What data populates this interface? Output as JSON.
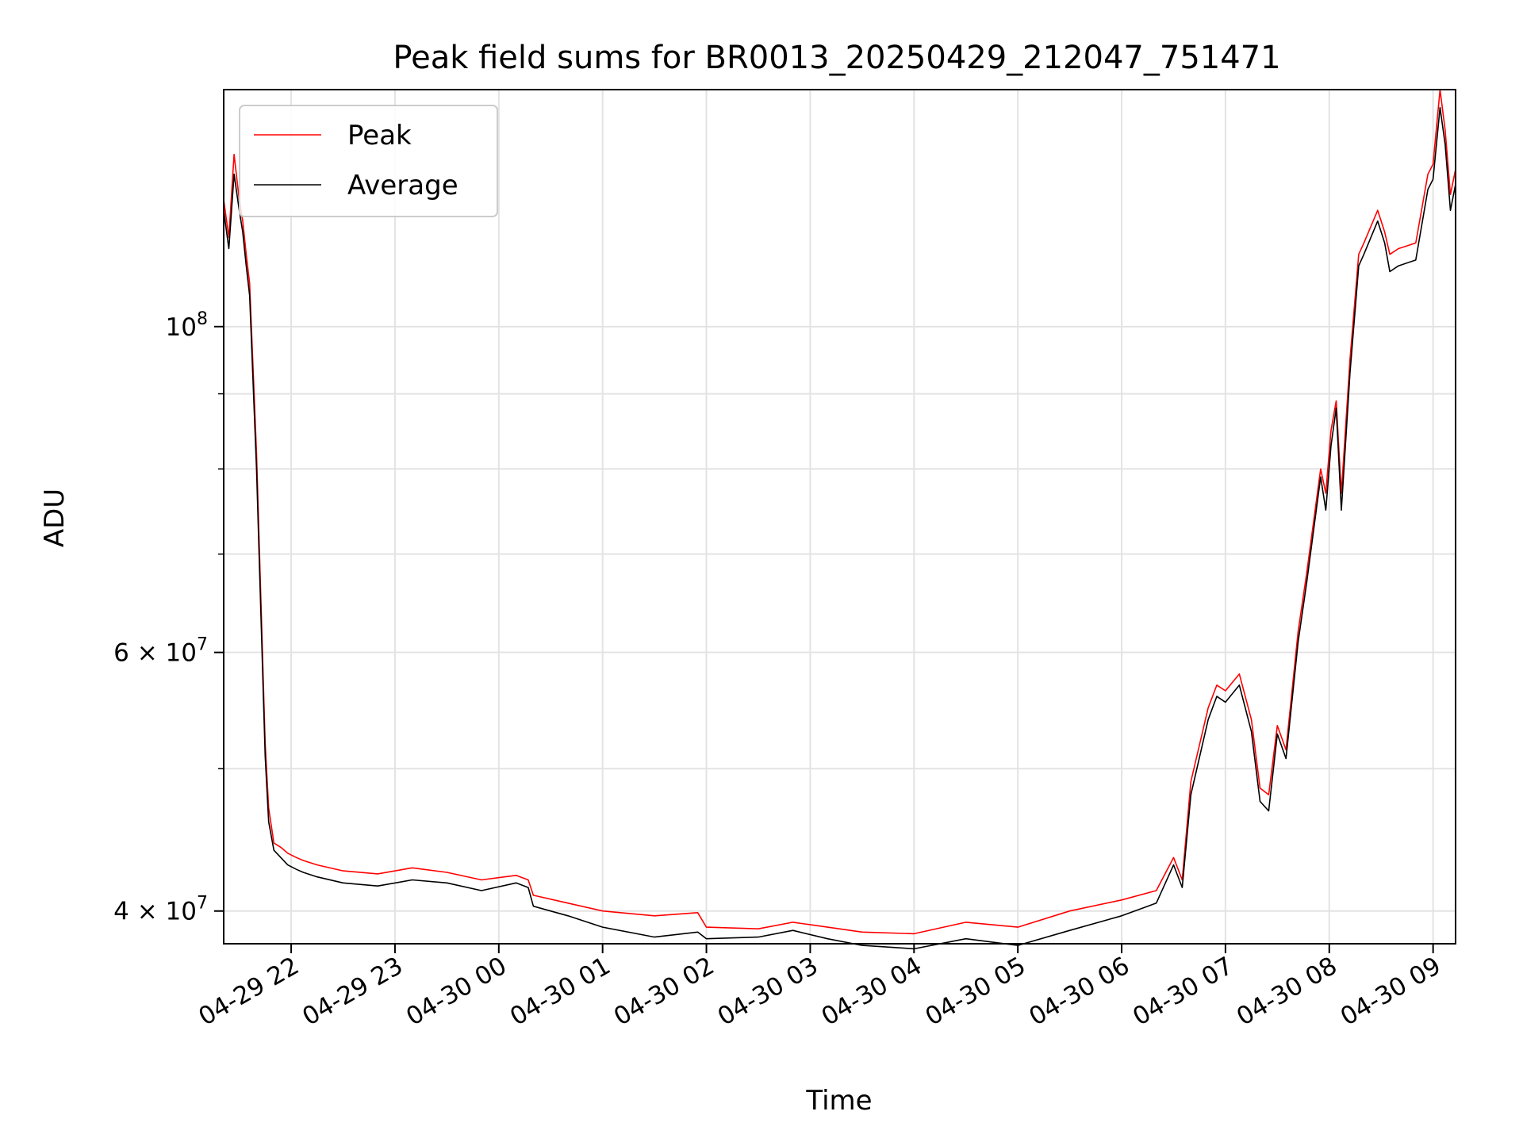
{
  "chart_data": {
    "type": "line",
    "title": "Peak field sums for BR0013_20250429_212047_751471",
    "xlabel": "Time",
    "ylabel": "ADU",
    "y_scale": "log",
    "ylim": [
      38000000,
      145000000
    ],
    "xlim": [
      "2025-04-29 21:21",
      "2025-04-30 09:13"
    ],
    "grid": true,
    "legend_position": "upper left",
    "x_tick_labels": [
      "04-29 22",
      "04-29 23",
      "04-30 00",
      "04-30 01",
      "04-30 02",
      "04-30 03",
      "04-30 04",
      "04-30 05",
      "04-30 06",
      "04-30 07",
      "04-30 08",
      "04-30 09"
    ],
    "x_tick_times": [
      "2025-04-29 22:00",
      "2025-04-29 23:00",
      "2025-04-30 00:00",
      "2025-04-30 01:00",
      "2025-04-30 02:00",
      "2025-04-30 03:00",
      "2025-04-30 04:00",
      "2025-04-30 05:00",
      "2025-04-30 06:00",
      "2025-04-30 07:00",
      "2025-04-30 08:00",
      "2025-04-30 09:00"
    ],
    "y_major_ticks": [
      {
        "value": 40000000,
        "mantissa": "4",
        "exponent": "7"
      },
      {
        "value": 60000000,
        "mantissa": "6",
        "exponent": "7"
      },
      {
        "value": 100000000,
        "mantissa": "",
        "exponent": "8"
      }
    ],
    "y_minor_ticks": [
      50000000,
      70000000,
      80000000,
      90000000
    ],
    "series": [
      {
        "name": "Peak",
        "color": "#ff0000",
        "x": [
          "2025-04-29 21:21",
          "2025-04-29 21:24",
          "2025-04-29 21:27",
          "2025-04-29 21:30",
          "2025-04-29 21:32",
          "2025-04-29 21:34",
          "2025-04-29 21:36",
          "2025-04-29 21:40",
          "2025-04-29 21:45",
          "2025-04-29 21:47",
          "2025-04-29 21:50",
          "2025-04-29 21:54",
          "2025-04-29 21:58",
          "2025-04-29 22:03",
          "2025-04-29 22:07",
          "2025-04-29 22:15",
          "2025-04-29 22:30",
          "2025-04-29 22:50",
          "2025-04-29 23:10",
          "2025-04-29 23:30",
          "2025-04-29 23:50",
          "2025-04-30 00:10",
          "2025-04-30 00:17",
          "2025-04-30 00:20",
          "2025-04-30 00:40",
          "2025-04-30 01:00",
          "2025-04-30 01:30",
          "2025-04-30 01:55",
          "2025-04-30 02:00",
          "2025-04-30 02:30",
          "2025-04-30 02:50",
          "2025-04-30 03:10",
          "2025-04-30 03:30",
          "2025-04-30 04:00",
          "2025-04-30 04:30",
          "2025-04-30 05:00",
          "2025-04-30 05:30",
          "2025-04-30 06:00",
          "2025-04-30 06:20",
          "2025-04-30 06:30",
          "2025-04-30 06:35",
          "2025-04-30 06:40",
          "2025-04-30 06:50",
          "2025-04-30 06:55",
          "2025-04-30 07:00",
          "2025-04-30 07:08",
          "2025-04-30 07:15",
          "2025-04-30 07:20",
          "2025-04-30 07:25",
          "2025-04-30 07:30",
          "2025-04-30 07:35",
          "2025-04-30 07:42",
          "2025-04-30 07:47",
          "2025-04-30 07:55",
          "2025-04-30 07:58",
          "2025-04-30 08:01",
          "2025-04-30 08:04",
          "2025-04-30 08:07",
          "2025-04-30 08:12",
          "2025-04-30 08:17",
          "2025-04-30 08:20",
          "2025-04-30 08:28",
          "2025-04-30 08:32",
          "2025-04-30 08:35",
          "2025-04-30 08:40",
          "2025-04-30 08:50",
          "2025-04-30 08:57",
          "2025-04-30 09:00",
          "2025-04-30 09:04",
          "2025-04-30 09:07",
          "2025-04-30 09:10",
          "2025-04-30 09:13"
        ],
        "values": [
          122000000,
          115000000,
          131000000,
          122000000,
          118000000,
          112000000,
          107000000,
          82000000,
          52000000,
          47000000,
          44500000,
          44200000,
          43800000,
          43500000,
          43300000,
          43000000,
          42600000,
          42400000,
          42800000,
          42500000,
          42000000,
          42300000,
          42000000,
          41000000,
          40500000,
          40000000,
          39700000,
          39900000,
          39000000,
          38900000,
          39300000,
          39000000,
          38700000,
          38600000,
          39300000,
          39000000,
          40000000,
          40700000,
          41300000,
          43500000,
          42000000,
          49000000,
          55000000,
          57000000,
          56500000,
          58000000,
          54000000,
          48500000,
          48000000,
          53500000,
          51500000,
          62000000,
          68000000,
          80000000,
          77000000,
          85000000,
          89000000,
          77000000,
          95000000,
          112000000,
          114000000,
          120000000,
          116000000,
          112000000,
          113000000,
          114000000,
          127000000,
          129000000,
          145000000,
          136000000,
          123000000,
          128000000
        ]
      },
      {
        "name": "Average",
        "color": "#000000",
        "x": [
          "2025-04-29 21:21",
          "2025-04-29 21:24",
          "2025-04-29 21:27",
          "2025-04-29 21:30",
          "2025-04-29 21:32",
          "2025-04-29 21:34",
          "2025-04-29 21:36",
          "2025-04-29 21:40",
          "2025-04-29 21:45",
          "2025-04-29 21:47",
          "2025-04-29 21:50",
          "2025-04-29 21:54",
          "2025-04-29 21:58",
          "2025-04-29 22:03",
          "2025-04-29 22:07",
          "2025-04-29 22:15",
          "2025-04-29 22:30",
          "2025-04-29 22:50",
          "2025-04-29 23:10",
          "2025-04-29 23:30",
          "2025-04-29 23:50",
          "2025-04-30 00:10",
          "2025-04-30 00:17",
          "2025-04-30 00:20",
          "2025-04-30 00:40",
          "2025-04-30 01:00",
          "2025-04-30 01:30",
          "2025-04-30 01:55",
          "2025-04-30 02:00",
          "2025-04-30 02:30",
          "2025-04-30 02:50",
          "2025-04-30 03:10",
          "2025-04-30 03:30",
          "2025-04-30 04:00",
          "2025-04-30 04:30",
          "2025-04-30 05:00",
          "2025-04-30 05:30",
          "2025-04-30 06:00",
          "2025-04-30 06:20",
          "2025-04-30 06:30",
          "2025-04-30 06:35",
          "2025-04-30 06:40",
          "2025-04-30 06:50",
          "2025-04-30 06:55",
          "2025-04-30 07:00",
          "2025-04-30 07:08",
          "2025-04-30 07:15",
          "2025-04-30 07:20",
          "2025-04-30 07:25",
          "2025-04-30 07:30",
          "2025-04-30 07:35",
          "2025-04-30 07:42",
          "2025-04-30 07:47",
          "2025-04-30 07:55",
          "2025-04-30 07:58",
          "2025-04-30 08:01",
          "2025-04-30 08:04",
          "2025-04-30 08:07",
          "2025-04-30 08:12",
          "2025-04-30 08:17",
          "2025-04-30 08:20",
          "2025-04-30 08:28",
          "2025-04-30 08:32",
          "2025-04-30 08:35",
          "2025-04-30 08:40",
          "2025-04-30 08:50",
          "2025-04-30 08:57",
          "2025-04-30 09:00",
          "2025-04-30 09:04",
          "2025-04-30 09:07",
          "2025-04-30 09:10",
          "2025-04-30 09:13"
        ],
        "values": [
          120000000,
          113000000,
          127000000,
          120000000,
          116000000,
          110000000,
          105000000,
          80000000,
          51000000,
          46000000,
          44000000,
          43500000,
          43000000,
          42700000,
          42500000,
          42200000,
          41800000,
          41600000,
          42000000,
          41800000,
          41300000,
          41800000,
          41500000,
          40300000,
          39700000,
          39000000,
          38400000,
          38700000,
          38300000,
          38400000,
          38800000,
          38300000,
          37900000,
          37700000,
          38300000,
          37900000,
          38800000,
          39700000,
          40500000,
          43000000,
          41500000,
          48000000,
          54000000,
          56000000,
          55500000,
          57000000,
          53000000,
          47500000,
          46800000,
          52800000,
          50800000,
          61000000,
          67000000,
          79000000,
          75000000,
          83000000,
          88000000,
          75000000,
          93000000,
          110000000,
          112000000,
          118000000,
          114000000,
          109000000,
          110000000,
          111000000,
          124000000,
          126000000,
          141000000,
          133000000,
          120000000,
          125000000
        ]
      }
    ]
  }
}
